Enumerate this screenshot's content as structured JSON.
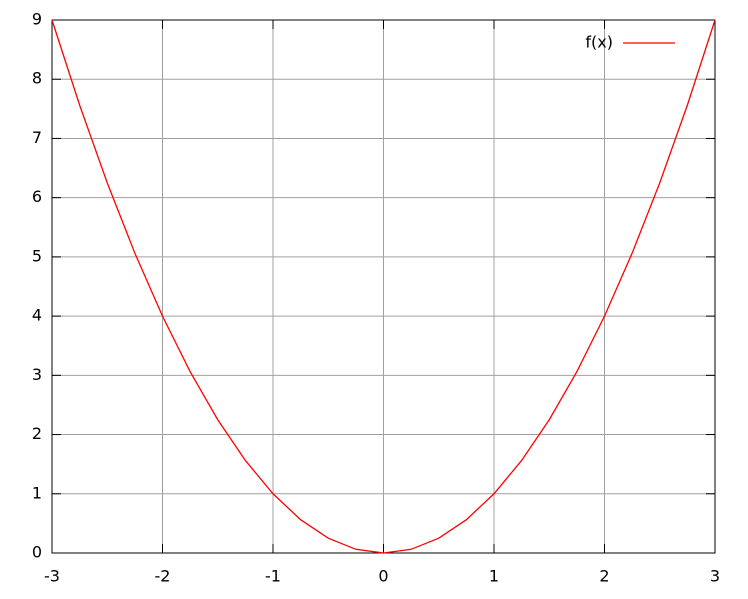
{
  "chart_data": {
    "type": "line",
    "x": [
      -3,
      -2.75,
      -2.5,
      -2.25,
      -2,
      -1.75,
      -1.5,
      -1.25,
      -1,
      -0.75,
      -0.5,
      -0.25,
      0,
      0.25,
      0.5,
      0.75,
      1,
      1.25,
      1.5,
      1.75,
      2,
      2.25,
      2.5,
      2.75,
      3
    ],
    "series": [
      {
        "name": "f(x)",
        "color": "#ff0000",
        "values": [
          9,
          7.5625,
          6.25,
          5.0625,
          4,
          3.0625,
          2.25,
          1.5625,
          1,
          0.5625,
          0.25,
          0.0625,
          0,
          0.0625,
          0.25,
          0.5625,
          1,
          1.5625,
          2.25,
          3.0625,
          4,
          5.0625,
          6.25,
          7.5625,
          9
        ]
      }
    ],
    "xlim": [
      -3,
      3
    ],
    "xticks": [
      -3,
      -2,
      -1,
      0,
      1,
      2,
      3
    ],
    "ylim": [
      0,
      9
    ],
    "yticks": [
      0,
      1,
      2,
      3,
      4,
      5,
      6,
      7,
      8,
      9
    ],
    "grid": true,
    "legend": "top-right"
  }
}
